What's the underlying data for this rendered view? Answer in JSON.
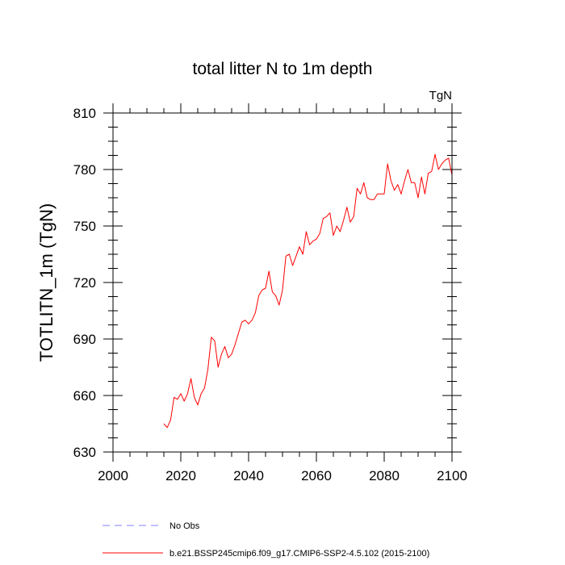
{
  "chart_data": {
    "type": "line",
    "title": "total litter N to 1m depth",
    "units_label": "TgN",
    "ylabel": "TOTLITN_1m  (TgN)",
    "xlabel": "",
    "xlim": [
      2000,
      2100
    ],
    "ylim": [
      630,
      810
    ],
    "x_ticks": [
      2000,
      2020,
      2040,
      2060,
      2080,
      2100
    ],
    "x_tick_labels": [
      "2000",
      "2020",
      "2040",
      "2060",
      "2080",
      "2100"
    ],
    "y_ticks": [
      630,
      660,
      690,
      720,
      750,
      780,
      810
    ],
    "y_tick_labels": [
      "630",
      "660",
      "690",
      "720",
      "750",
      "780",
      "810"
    ],
    "series": [
      {
        "name": "b.e21.BSSP245cmip6.f09_g17.CMIP6-SSP2-4.5.102 (2015-2100)",
        "color": "#ff0000",
        "style": "solid",
        "x": [
          2015,
          2016,
          2017,
          2018,
          2019,
          2020,
          2021,
          2022,
          2023,
          2024,
          2025,
          2026,
          2027,
          2028,
          2029,
          2030,
          2031,
          2032,
          2033,
          2034,
          2035,
          2036,
          2037,
          2038,
          2039,
          2040,
          2041,
          2042,
          2043,
          2044,
          2045,
          2046,
          2047,
          2048,
          2049,
          2050,
          2051,
          2052,
          2053,
          2054,
          2055,
          2056,
          2057,
          2058,
          2059,
          2060,
          2061,
          2062,
          2063,
          2064,
          2065,
          2066,
          2067,
          2068,
          2069,
          2070,
          2071,
          2072,
          2073,
          2074,
          2075,
          2076,
          2077,
          2078,
          2079,
          2080,
          2081,
          2082,
          2083,
          2084,
          2085,
          2086,
          2087,
          2088,
          2089,
          2090,
          2091,
          2092,
          2093,
          2094,
          2095,
          2096,
          2097,
          2098,
          2099,
          2100
        ],
        "values": [
          645,
          643,
          647,
          659,
          658,
          661,
          657,
          661,
          669,
          659,
          655,
          661,
          664,
          674,
          691,
          689,
          675,
          682,
          686,
          680,
          682,
          687,
          693,
          699,
          700,
          698,
          700,
          704,
          713,
          716,
          717,
          726,
          715,
          713,
          708,
          716,
          734,
          735,
          729,
          734,
          739,
          735,
          747,
          740,
          742,
          743,
          746,
          754,
          755,
          757,
          745,
          750,
          747,
          753,
          760,
          752,
          755,
          770,
          767,
          773,
          765,
          764,
          764,
          767,
          767,
          767,
          783,
          774,
          769,
          772,
          767,
          774,
          780,
          773,
          773,
          765,
          776,
          767,
          778,
          779,
          788,
          780,
          783,
          785,
          786,
          777
        ]
      }
    ],
    "legend": [
      {
        "label": "No Obs",
        "color": "#8080ff",
        "style": "dashed"
      },
      {
        "label": "b.e21.BSSP245cmip6.f09_g17.CMIP6-SSP2-4.5.102 (2015-2100)",
        "color": "#ff0000",
        "style": "solid"
      }
    ],
    "legend_position": "bottom"
  }
}
